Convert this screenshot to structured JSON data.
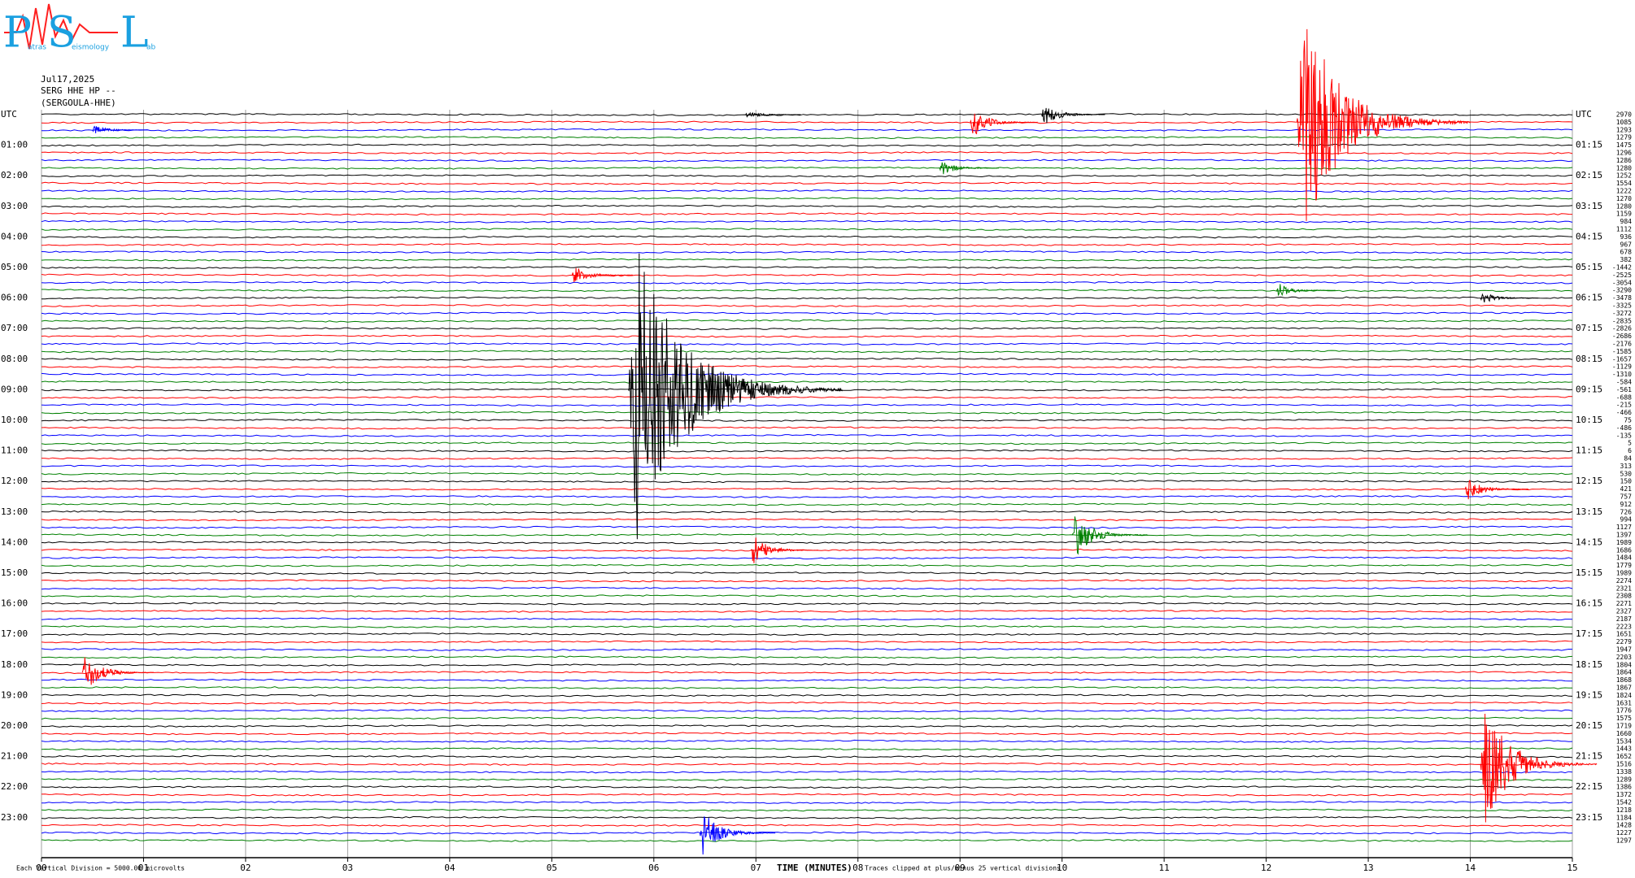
{
  "logo": {
    "letters": [
      "P",
      "S",
      "L"
    ],
    "words": [
      "atras",
      "eismology",
      "ab"
    ]
  },
  "chart_data": {
    "type": "helicorder",
    "date": "Jul17,2025",
    "station": "SERG HHE HP --",
    "station_name": "(SERGOULA-HHE)",
    "x_label": "TIME (MINUTES)",
    "scale_note": "Each Vertical Division = 5000.00 microvolts",
    "clip_note": "Traces clipped at plus/minus 25 vertical divisions",
    "colors": [
      "#000000",
      "#ff0000",
      "#0000ff",
      "#008000"
    ],
    "xlim": [
      0,
      15
    ],
    "xticks": [
      {
        "value": 0,
        "label": "00"
      },
      {
        "value": 1,
        "label": "01"
      },
      {
        "value": 2,
        "label": "02"
      },
      {
        "value": 3,
        "label": "03"
      },
      {
        "value": 4,
        "label": "04"
      },
      {
        "value": 5,
        "label": "05"
      },
      {
        "value": 6,
        "label": "06"
      },
      {
        "value": 7,
        "label": "07"
      },
      {
        "value": 8,
        "label": "08"
      },
      {
        "value": 9,
        "label": "09"
      },
      10,
      11,
      12,
      13,
      14,
      15
    ],
    "left_labels": [
      "UTC",
      null,
      null,
      null,
      "01:00",
      null,
      null,
      null,
      "02:00",
      null,
      null,
      null,
      "03:00",
      null,
      null,
      null,
      "04:00",
      null,
      null,
      null,
      "05:00",
      null,
      null,
      null,
      "06:00",
      null,
      null,
      null,
      "07:00",
      null,
      null,
      null,
      "08:00",
      null,
      null,
      null,
      "09:00",
      null,
      null,
      null,
      "10:00",
      null,
      null,
      null,
      "11:00",
      null,
      null,
      null,
      "12:00",
      null,
      null,
      null,
      "13:00",
      null,
      null,
      null,
      "14:00",
      null,
      null,
      null,
      "15:00",
      null,
      null,
      null,
      "16:00",
      null,
      null,
      null,
      "17:00",
      null,
      null,
      null,
      "18:00",
      null,
      null,
      null,
      "19:00",
      null,
      null,
      null,
      "20:00",
      null,
      null,
      null,
      "21:00",
      null,
      null,
      null,
      "22:00",
      null,
      null,
      null,
      "23:00",
      null,
      null,
      null
    ],
    "right_labels": [
      "UTC",
      null,
      null,
      null,
      "01:15",
      null,
      null,
      null,
      "02:15",
      null,
      null,
      null,
      "03:15",
      null,
      null,
      null,
      "04:15",
      null,
      null,
      null,
      "05:15",
      null,
      null,
      null,
      "06:15",
      null,
      null,
      null,
      "07:15",
      null,
      null,
      null,
      "08:15",
      null,
      null,
      null,
      "09:15",
      null,
      null,
      null,
      "10:15",
      null,
      null,
      null,
      "11:15",
      null,
      null,
      null,
      "12:15",
      null,
      null,
      null,
      "13:15",
      null,
      null,
      null,
      "14:15",
      null,
      null,
      null,
      "15:15",
      null,
      null,
      null,
      "16:15",
      null,
      null,
      null,
      "17:15",
      null,
      null,
      null,
      "18:15",
      null,
      null,
      null,
      "19:15",
      null,
      null,
      null,
      "20:15",
      null,
      null,
      null,
      "21:15",
      null,
      null,
      null,
      "22:15",
      null,
      null,
      null,
      "23:15",
      null,
      null,
      null
    ],
    "trace_values": [
      2970,
      1085,
      1293,
      1279,
      1475,
      1296,
      1286,
      1280,
      1252,
      1554,
      1222,
      1270,
      1280,
      1159,
      984,
      1112,
      936,
      967,
      678,
      382,
      -1442,
      -2525,
      -3054,
      -3290,
      -3478,
      -3325,
      -3272,
      -2835,
      -2826,
      -2686,
      -2176,
      -1585,
      -1657,
      -1129,
      -1310,
      -584,
      -561,
      -688,
      -215,
      -466,
      75,
      -486,
      -135,
      5,
      6,
      84,
      313,
      530,
      150,
      421,
      757,
      912,
      726,
      994,
      1127,
      1397,
      1989,
      1686,
      1484,
      1779,
      1989,
      2274,
      2321,
      2308,
      2271,
      2327,
      2187,
      2223,
      1651,
      2279,
      1947,
      2203,
      1804,
      1864,
      1868,
      1867,
      1824,
      1631,
      1776,
      1575,
      1719,
      1660,
      1534,
      1443,
      1652,
      1516,
      1338,
      1289,
      1386,
      1372,
      1542,
      1218,
      1184,
      1428,
      1227,
      1297
    ],
    "events": [
      {
        "trace": 0,
        "minute": 6.9,
        "amplitude": 0.5
      },
      {
        "trace": 0,
        "minute": 9.8,
        "amplitude": 1.5
      },
      {
        "trace": 1,
        "minute": 9.1,
        "amplitude": 2
      },
      {
        "trace": 1,
        "minute": 12.3,
        "amplitude": 15
      },
      {
        "trace": 2,
        "minute": 0.5,
        "amplitude": 0.6
      },
      {
        "trace": 7,
        "minute": 8.8,
        "amplitude": 1
      },
      {
        "trace": 21,
        "minute": 5.2,
        "amplitude": 1.2
      },
      {
        "trace": 23,
        "minute": 12.1,
        "amplitude": 1
      },
      {
        "trace": 24,
        "minute": 14.1,
        "amplitude": 0.8
      },
      {
        "trace": 36,
        "minute": 5.75,
        "amplitude": 20
      },
      {
        "trace": 49,
        "minute": 13.95,
        "amplitude": 1.5
      },
      {
        "trace": 55,
        "minute": 10.1,
        "amplitude": 3
      },
      {
        "trace": 57,
        "minute": 6.95,
        "amplitude": 2
      },
      {
        "trace": 73,
        "minute": 0.4,
        "amplitude": 2.5
      },
      {
        "trace": 85,
        "minute": 14.1,
        "amplitude": 8
      },
      {
        "trace": 94,
        "minute": 6.45,
        "amplitude": 3
      }
    ]
  }
}
